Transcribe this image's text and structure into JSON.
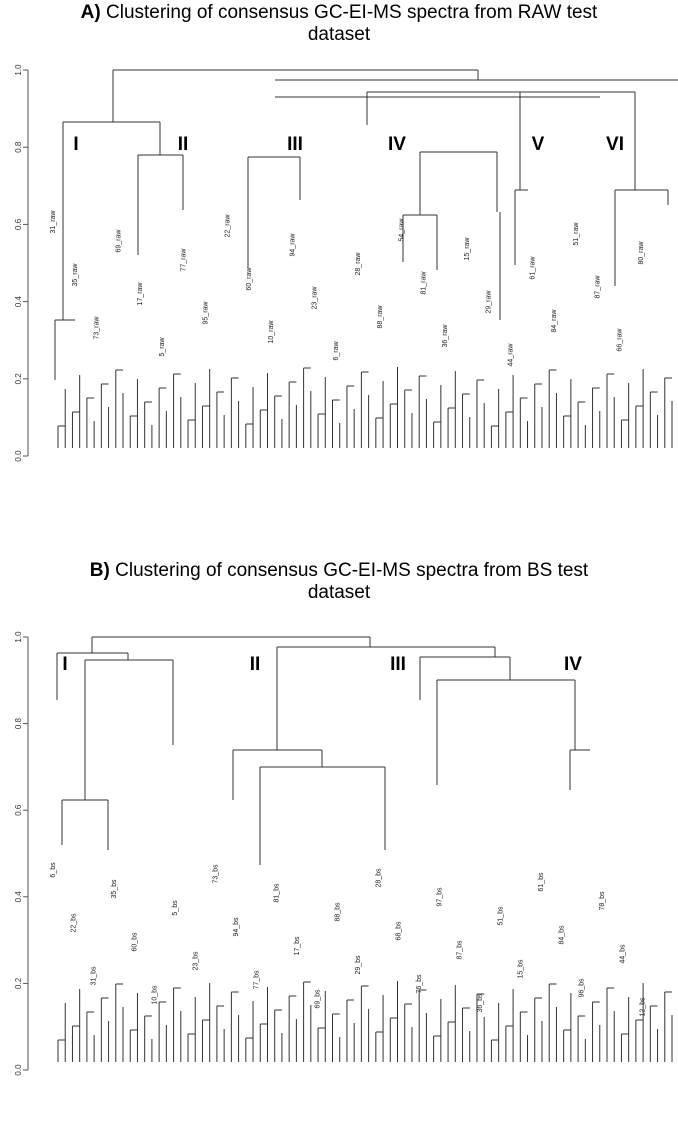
{
  "panels": [
    {
      "id": "A",
      "letter": "A)",
      "title_line1": "Clustering of consensus GC-EI-MS spectra from RAW test",
      "title_line2": "dataset",
      "y_ticks": [
        "0.0",
        "0.2",
        "0.4",
        "0.6",
        "0.8",
        "1.0"
      ],
      "cluster_labels": [
        "I",
        "II",
        "III",
        "IV",
        "V",
        "VI"
      ],
      "leaf_labels": [
        "31_raw",
        "35_raw",
        "73_raw",
        "69_raw",
        "17_raw",
        "5_raw",
        "77_raw",
        "95_raw",
        "22_raw",
        "60_raw",
        "10_raw",
        "94_raw",
        "23_raw",
        "6_raw",
        "28_raw",
        "88_raw",
        "54_raw",
        "81_raw",
        "36_raw",
        "15_raw",
        "29_raw",
        "44_raw",
        "61_raw",
        "84_raw",
        "51_raw",
        "87_raw",
        "66_raw",
        "80_raw"
      ]
    },
    {
      "id": "B",
      "letter": "B)",
      "title_line1": "Clustering of consensus GC-EI-MS spectra from BS test",
      "title_line2": "dataset",
      "y_ticks": [
        "0.0",
        "0.2",
        "0.4",
        "0.6",
        "0.8",
        "1.0"
      ],
      "cluster_labels": [
        "I",
        "II",
        "III",
        "IV"
      ],
      "leaf_labels": [
        "6_bs",
        "22_bs",
        "31_bs",
        "35_bs",
        "60_bs",
        "10_bs",
        "5_bs",
        "23_bs",
        "73_bs",
        "94_bs",
        "77_bs",
        "81_bs",
        "17_bs",
        "69_bs",
        "88_bs",
        "29_bs",
        "28_bs",
        "68_bs",
        "76_bs",
        "97_bs",
        "87_bs",
        "36_bs",
        "51_bs",
        "15_bs",
        "61_bs",
        "84_bs",
        "96_bs",
        "78_bs",
        "44_bs",
        "12_bs"
      ]
    }
  ]
}
